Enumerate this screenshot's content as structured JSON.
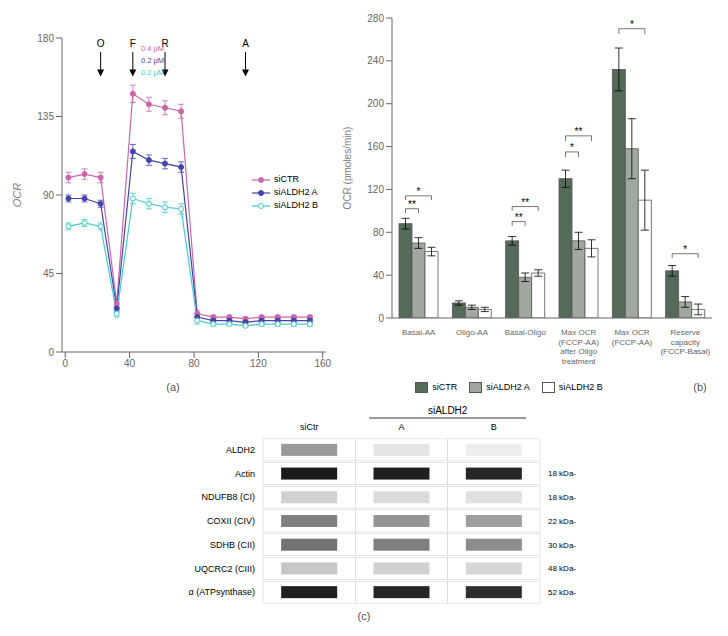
{
  "chart_data": [
    {
      "type": "line",
      "title": "(a)",
      "ylabel": "OCR",
      "x": [
        2,
        12,
        22,
        32,
        42,
        52,
        62,
        72,
        82,
        92,
        102,
        112,
        122,
        132,
        142,
        152
      ],
      "series": [
        {
          "name": "siCTR",
          "color": "#cc66aa",
          "marker": "circle",
          "values": [
            100,
            102,
            100,
            28,
            148,
            142,
            140,
            138,
            22,
            20,
            20,
            19,
            20,
            20,
            20,
            20
          ],
          "errors": [
            3,
            3,
            3,
            2,
            5,
            4,
            4,
            4,
            2,
            1,
            1,
            1,
            1,
            1,
            1,
            1
          ]
        },
        {
          "name": "siALDH2 A",
          "color": "#4444aa",
          "marker": "circle",
          "values": [
            88,
            88,
            85,
            25,
            115,
            110,
            108,
            106,
            20,
            18,
            18,
            17,
            18,
            18,
            18,
            18
          ],
          "errors": [
            2,
            2,
            2,
            2,
            4,
            3,
            3,
            3,
            2,
            1,
            1,
            1,
            1,
            1,
            1,
            1
          ]
        },
        {
          "name": "siALDH2 B",
          "color": "#44cccc",
          "marker": "open_circle",
          "values": [
            72,
            74,
            72,
            22,
            88,
            85,
            83,
            82,
            18,
            16,
            16,
            15,
            16,
            16,
            16,
            16
          ],
          "errors": [
            2,
            2,
            2,
            2,
            3,
            3,
            3,
            3,
            2,
            1,
            1,
            1,
            1,
            1,
            1,
            1
          ]
        }
      ],
      "xlim": [
        -2,
        162
      ],
      "xticks": [
        0,
        40,
        80,
        120,
        160
      ],
      "ylim": [
        0,
        180
      ],
      "yticks": [
        0,
        45,
        90,
        135,
        180
      ],
      "legend": "center right",
      "annotations": [
        {
          "text": "O",
          "x": 22,
          "y": 175,
          "arrow_from": 172,
          "arrow_to": 158
        },
        {
          "text": "F",
          "x": 42,
          "y": 175,
          "arrow_from": 172,
          "arrow_to": 158
        },
        {
          "text": "R",
          "x": 62,
          "y": 175,
          "arrow_from": 172,
          "arrow_to": 158
        },
        {
          "text": "A",
          "x": 112,
          "y": 175,
          "arrow_from": 172,
          "arrow_to": 158
        },
        {
          "text": "0.4 μM",
          "x": 47,
          "y": 174,
          "color": "#cc66aa"
        },
        {
          "text": "0.2 μM",
          "x": 47,
          "y": 167,
          "color": "#4444aa"
        },
        {
          "text": "0.2 μM",
          "x": 47,
          "y": 160,
          "color": "#44cccc"
        }
      ]
    },
    {
      "type": "bar",
      "title": "(b)",
      "ylabel": "OCR (pmoles/min)",
      "categories": [
        "Basal-AA",
        "Oligo-AA",
        "Basal-Oligo",
        "Max OCR\n(FCCP-AA)\nafter Oligo\ntreatment",
        "Max OCR\n(FCCP-AA)",
        "Reserve\ncapacity\n(FCCP-Basal)"
      ],
      "series": [
        {
          "name": "siCTR",
          "color": "#556b5a",
          "values": [
            88,
            14,
            72,
            130,
            232,
            44
          ],
          "errors": [
            5,
            2,
            4,
            8,
            20,
            5
          ]
        },
        {
          "name": "siALDH2 A",
          "color": "#a0a8a0",
          "values": [
            70,
            10,
            38,
            72,
            158,
            15
          ],
          "errors": [
            5,
            2,
            4,
            8,
            28,
            5
          ]
        },
        {
          "name": "siALDH2 B",
          "color": "#ffffff",
          "values": [
            62,
            8,
            42,
            65,
            110,
            8
          ],
          "errors": [
            4,
            2,
            3,
            8,
            28,
            5
          ]
        }
      ],
      "ylim": [
        0,
        280
      ],
      "yticks": [
        0,
        40,
        80,
        120,
        160,
        200,
        240,
        280
      ],
      "legend": "bottom",
      "annotations": [
        {
          "text": "**",
          "category": "Basal-AA",
          "from": "siCTR",
          "to": "siALDH2 A",
          "y": 98,
          "dy": 4
        },
        {
          "text": "*",
          "category": "Basal-AA",
          "from": "siCTR",
          "to": "siALDH2 B",
          "y": 110,
          "dy": 4
        },
        {
          "text": "**",
          "category": "Basal-Oligo",
          "from": "siCTR",
          "to": "siALDH2 A",
          "y": 86,
          "dy": 4
        },
        {
          "text": "**",
          "category": "Basal-Oligo",
          "from": "siCTR",
          "to": "siALDH2 B",
          "y": 100,
          "dy": 4
        },
        {
          "text": "*",
          "category": "Max OCR\n(FCCP-AA)\nafter Oligo\ntreatment",
          "from": "siCTR",
          "to": "siALDH2 A",
          "y": 150,
          "dy": 5
        },
        {
          "text": "**",
          "category": "Max OCR\n(FCCP-AA)\nafter Oligo\ntreatment",
          "from": "siCTR",
          "to": "siALDH2 B",
          "y": 165,
          "dy": 5
        },
        {
          "text": "*",
          "category": "Max OCR\n(FCCP-AA)",
          "from": "siCTR",
          "to": "siALDH2 B",
          "y": 265,
          "dy": 5
        },
        {
          "text": "*",
          "category": "Reserve\ncapacity\n(FCCP-Basal)",
          "from": "siCTR",
          "to": "siALDH2 B",
          "y": 56,
          "dy": 4
        }
      ]
    },
    {
      "type": "heatmap",
      "title": "(c)",
      "columns": [
        "siCtr",
        "A",
        "B"
      ],
      "column_group": {
        "label": "siALDH2",
        "columns": [
          "A",
          "B"
        ]
      },
      "rows": [
        "α (ATPsynthase)",
        "UQCRC2 (CIII)",
        "SDHB (CII)",
        "COXII (CIV)",
        "NDUFB8 (CI)",
        "Actin",
        "ALDH2"
      ],
      "right_labels": [
        "52 kDa-",
        "48 kDa-",
        "30 kDa-",
        "22 kDa-",
        "18 kDa-",
        "18 kDa-",
        null
      ],
      "cells": [
        [
          0.88,
          0.85,
          0.82
        ],
        [
          0.22,
          0.18,
          0.16
        ],
        [
          0.55,
          0.5,
          0.45
        ],
        [
          0.5,
          0.42,
          0.38
        ],
        [
          0.18,
          0.14,
          0.12
        ],
        [
          0.9,
          0.88,
          0.85
        ],
        [
          0.4,
          0.1,
          0.07
        ]
      ]
    }
  ]
}
